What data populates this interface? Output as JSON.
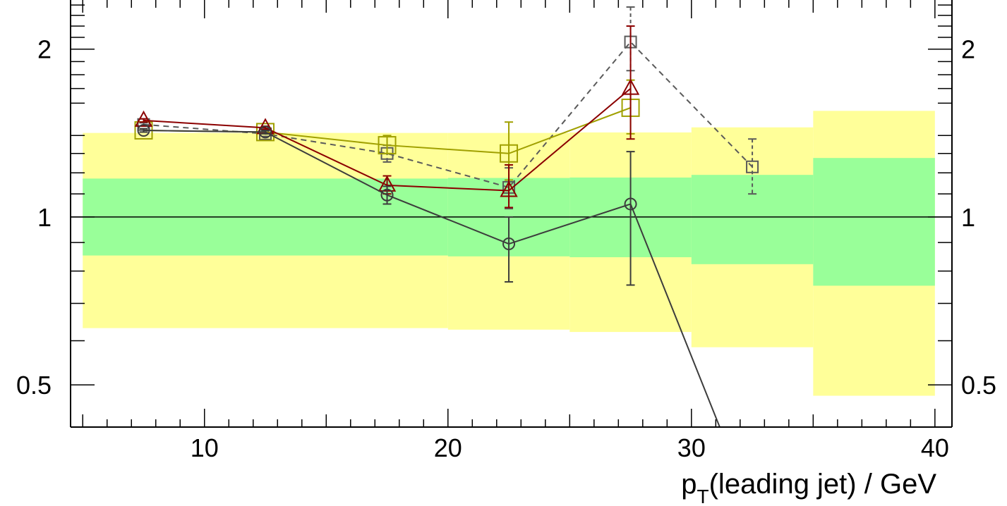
{
  "chart_data": {
    "type": "line",
    "title": "",
    "ylabel": "",
    "xlabel_main": "p",
    "xlabel_sub": "T",
    "xlabel_rest": "(leading jet) / GeV",
    "xlim": [
      4.5,
      40.7
    ],
    "ylim": [
      0.42,
      2.45
    ],
    "y_scale": "log",
    "x_ticks": [
      10,
      20,
      30,
      40
    ],
    "x_tick_labels": [
      "10",
      "20",
      "30",
      "40"
    ],
    "y_ticks": [
      0.5,
      1,
      2
    ],
    "y_tick_labels": [
      "0.5",
      "1",
      "2"
    ],
    "reference_line": 1,
    "grid": false,
    "bands": [
      {
        "name": "",
        "color": "#ffff99",
        "bins": [
          {
            "x0": 5,
            "x1": 20,
            "lo": 0.632,
            "hi": 1.415
          },
          {
            "x0": 20,
            "x1": 25,
            "lo": 0.628,
            "hi": 1.415
          },
          {
            "x0": 25,
            "x1": 30,
            "lo": 0.622,
            "hi": 1.418
          },
          {
            "x0": 30,
            "x1": 35,
            "lo": 0.584,
            "hi": 1.448
          },
          {
            "x0": 35,
            "x1": 40,
            "lo": 0.478,
            "hi": 1.55
          }
        ]
      },
      {
        "name": "",
        "color": "#99ff99",
        "bins": [
          {
            "x0": 5,
            "x1": 20,
            "lo": 0.853,
            "hi": 1.172
          },
          {
            "x0": 20,
            "x1": 25,
            "lo": 0.85,
            "hi": 1.175
          },
          {
            "x0": 25,
            "x1": 30,
            "lo": 0.847,
            "hi": 1.177
          },
          {
            "x0": 30,
            "x1": 35,
            "lo": 0.823,
            "hi": 1.19
          },
          {
            "x0": 35,
            "x1": 40,
            "lo": 0.753,
            "hi": 1.276
          }
        ]
      }
    ],
    "series": [
      {
        "name": "",
        "color": "#5a5a5a",
        "marker": "square-small",
        "dashed": true,
        "points": [
          {
            "x": 7.5,
            "y": 1.465,
            "lo": 1.455,
            "hi": 1.475
          },
          {
            "x": 12.5,
            "y": 1.41,
            "lo": 1.395,
            "hi": 1.425
          },
          {
            "x": 17.5,
            "y": 1.3,
            "lo": 1.255,
            "hi": 1.345
          },
          {
            "x": 22.5,
            "y": 1.13,
            "lo": 1.035,
            "hi": 1.225
          },
          {
            "x": 27.5,
            "y": 2.06,
            "lo": 1.83,
            "hi": 2.38
          },
          {
            "x": 32.5,
            "y": 1.23,
            "lo": 1.1,
            "hi": 1.38
          }
        ]
      },
      {
        "name": "",
        "color": "#a0a000",
        "marker": "square-large",
        "dashed": false,
        "points": [
          {
            "x": 7.5,
            "y": 1.43,
            "lo": 1.42,
            "hi": 1.44
          },
          {
            "x": 12.5,
            "y": 1.42,
            "lo": 1.41,
            "hi": 1.43
          },
          {
            "x": 17.5,
            "y": 1.345,
            "lo": 1.3,
            "hi": 1.4
          },
          {
            "x": 22.5,
            "y": 1.3,
            "lo": 1.165,
            "hi": 1.48
          },
          {
            "x": 27.5,
            "y": 1.57,
            "lo": 1.41,
            "hi": 1.76
          }
        ]
      },
      {
        "name": "",
        "color": "#8b0000",
        "marker": "triangle",
        "dashed": false,
        "points": [
          {
            "x": 7.5,
            "y": 1.49,
            "lo": 1.48,
            "hi": 1.5
          },
          {
            "x": 12.5,
            "y": 1.445,
            "lo": 1.435,
            "hi": 1.455
          },
          {
            "x": 17.5,
            "y": 1.14,
            "lo": 1.1,
            "hi": 1.185
          },
          {
            "x": 22.5,
            "y": 1.115,
            "lo": 1.04,
            "hi": 1.24
          },
          {
            "x": 27.5,
            "y": 1.7,
            "lo": 1.38,
            "hi": 2.2
          }
        ]
      },
      {
        "name": "",
        "color": "#3c3c3c",
        "marker": "circle",
        "dashed": false,
        "points": [
          {
            "x": 7.5,
            "y": 1.43,
            "lo": 1.42,
            "hi": 1.44
          },
          {
            "x": 12.5,
            "y": 1.42,
            "lo": 1.41,
            "hi": 1.43
          },
          {
            "x": 17.5,
            "y": 1.095,
            "lo": 1.055,
            "hi": 1.135
          },
          {
            "x": 22.5,
            "y": 0.895,
            "lo": 0.765,
            "hi": 1.0
          },
          {
            "x": 27.5,
            "y": 1.055,
            "lo": 0.755,
            "hi": 1.31
          },
          {
            "x": 32.5,
            "y": 0.3
          }
        ]
      }
    ]
  }
}
